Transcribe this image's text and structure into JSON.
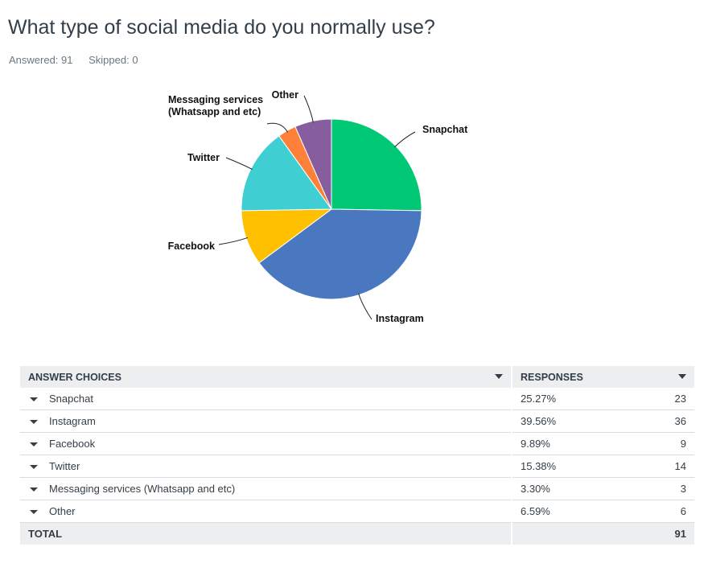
{
  "question": {
    "title": "What type of social media do you normally use?",
    "answered": "Answered: 91",
    "skipped": "Skipped: 0"
  },
  "chart_data": {
    "type": "pie",
    "slices": [
      {
        "label": "Snapchat",
        "value": 25.27,
        "color": "#00c875"
      },
      {
        "label": "Instagram",
        "value": 39.56,
        "color": "#4a78c0"
      },
      {
        "label": "Facebook",
        "value": 9.89,
        "color": "#ffc000"
      },
      {
        "label": "Twitter",
        "value": 15.38,
        "color": "#3fcfd3"
      },
      {
        "label": "Messaging services\n(Whatsapp and etc)",
        "value": 3.3,
        "color": "#ff8139"
      },
      {
        "label": "Other",
        "value": 6.59,
        "color": "#865d9e"
      }
    ]
  },
  "table": {
    "headers": {
      "choices": "ANSWER CHOICES",
      "responses": "RESPONSES"
    },
    "rows": [
      {
        "choice": "Snapchat",
        "percent": "25.27%",
        "count": "23"
      },
      {
        "choice": "Instagram",
        "percent": "39.56%",
        "count": "36"
      },
      {
        "choice": "Facebook",
        "percent": "9.89%",
        "count": "9"
      },
      {
        "choice": "Twitter",
        "percent": "15.38%",
        "count": "14"
      },
      {
        "choice": "Messaging services (Whatsapp and etc)",
        "percent": "3.30%",
        "count": "3"
      },
      {
        "choice": "Other",
        "percent": "6.59%",
        "count": "6"
      }
    ],
    "total": {
      "label": "TOTAL",
      "count": "91"
    }
  }
}
